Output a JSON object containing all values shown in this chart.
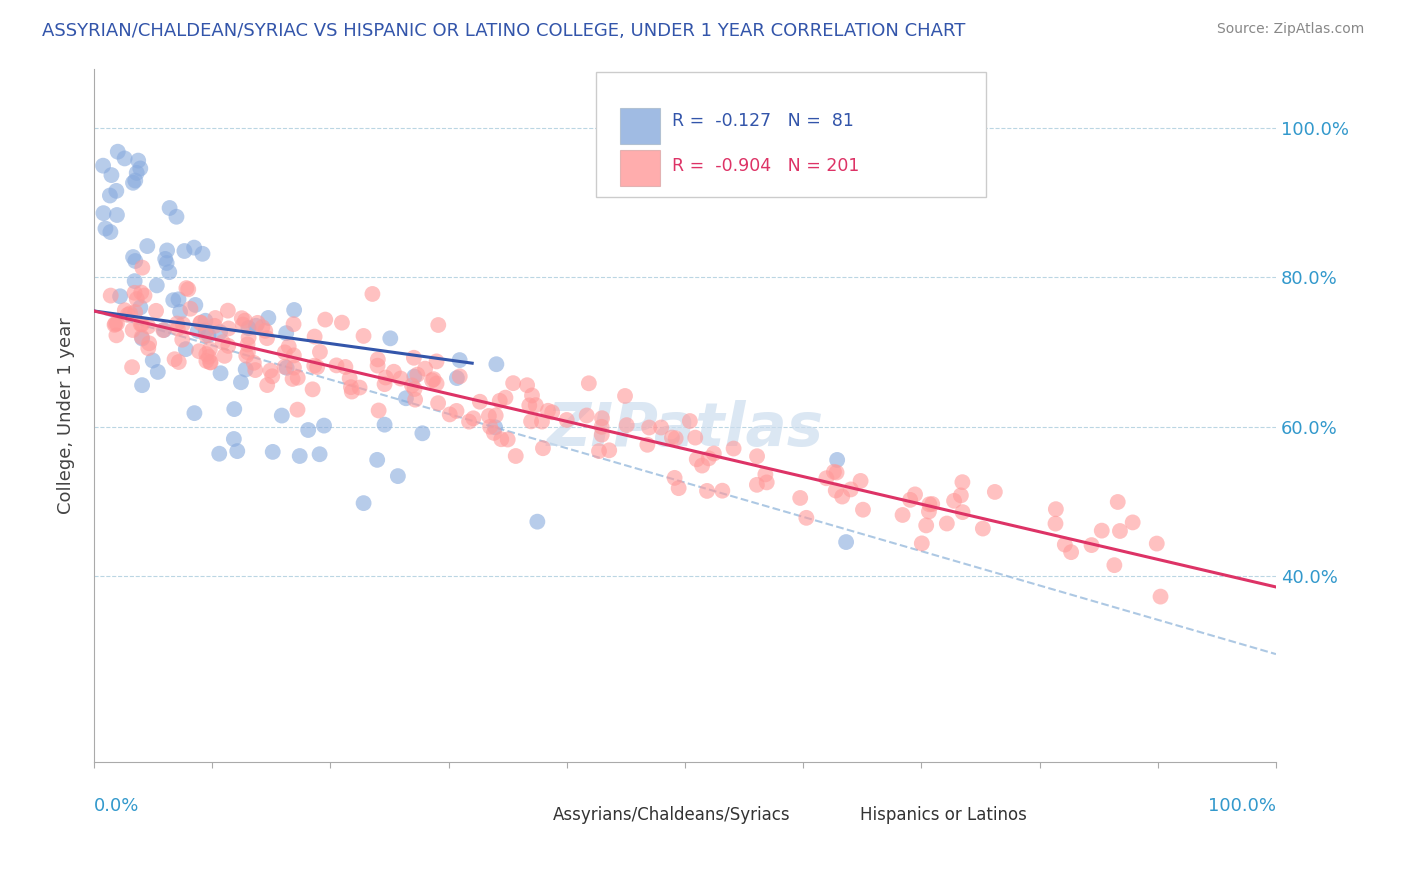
{
  "title": "ASSYRIAN/CHALDEAN/SYRIAC VS HISPANIC OR LATINO COLLEGE, UNDER 1 YEAR CORRELATION CHART",
  "source": "Source: ZipAtlas.com",
  "ylabel": "College, Under 1 year",
  "legend_blue_r": "-0.127",
  "legend_blue_n": "81",
  "legend_pink_r": "-0.904",
  "legend_pink_n": "201",
  "legend_label_blue": "Assyrians/Chaldeans/Syriacs",
  "legend_label_pink": "Hispanics or Latinos",
  "blue_color": "#88AADD",
  "pink_color": "#FF9999",
  "blue_line_color": "#3355AA",
  "pink_line_color": "#DD3366",
  "dashed_line_color": "#99BBDD",
  "watermark": "ZIPatlas",
  "background_color": "#FFFFFF",
  "title_color": "#3355AA",
  "source_color": "#888888",
  "right_tick_color": "#3399CC",
  "ytick_values": [
    0.4,
    0.6,
    0.8,
    1.0
  ],
  "ytick_labels": [
    "40.0%",
    "60.0%",
    "80.0%",
    "100.0%"
  ],
  "ylim": [
    0.15,
    1.08
  ],
  "xlim": [
    0.0,
    1.0
  ],
  "blue_trend_x": [
    0.0,
    0.32
  ],
  "blue_trend_y": [
    0.755,
    0.685
  ],
  "pink_trend_x": [
    0.0,
    1.0
  ],
  "pink_trend_y": [
    0.755,
    0.385
  ],
  "dashed_trend_x": [
    0.0,
    1.0
  ],
  "dashed_trend_y": [
    0.755,
    0.295
  ]
}
